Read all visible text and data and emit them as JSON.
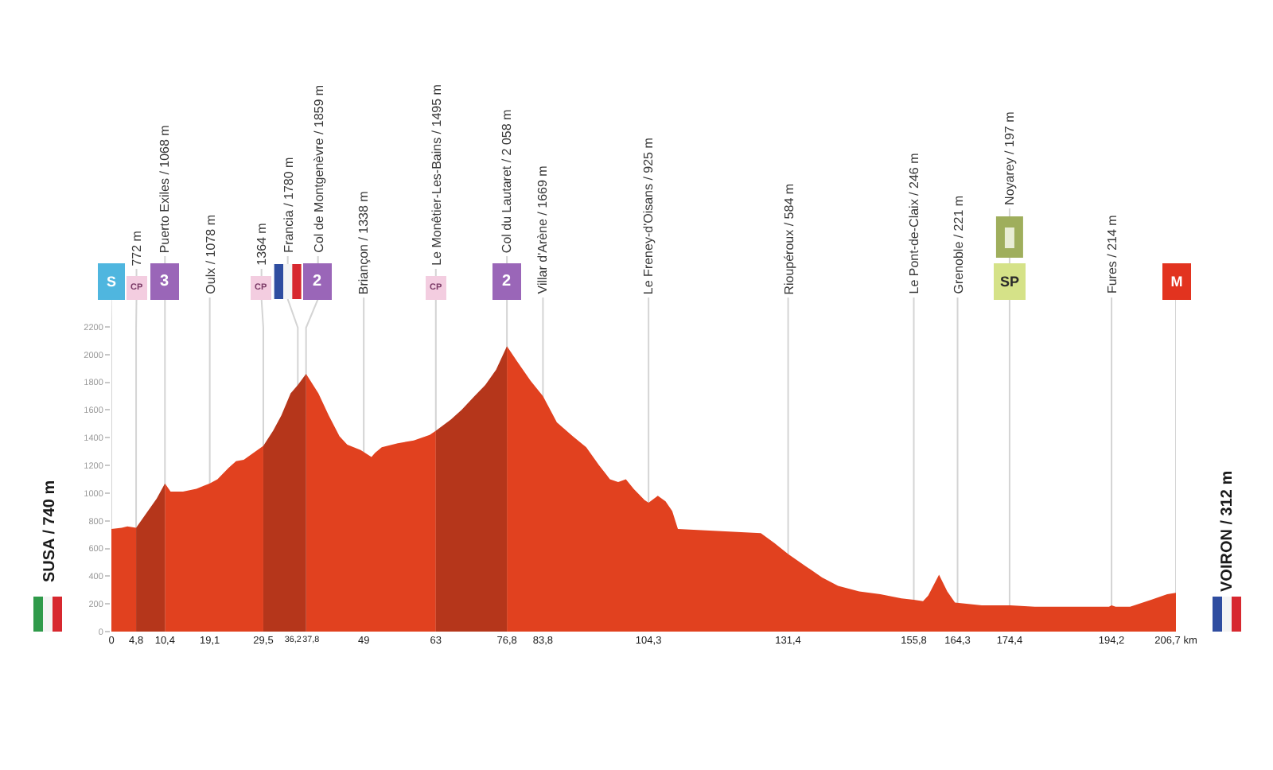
{
  "chart_data": {
    "type": "area",
    "x": [
      0,
      2,
      3.1,
      4.8,
      6.7,
      8.8,
      10.4,
      11.5,
      13.9,
      16.5,
      19.1,
      20.6,
      22.7,
      24.2,
      25.7,
      27.6,
      29.5,
      31.4,
      33.0,
      34.8,
      36.2,
      37.8,
      40.2,
      42.2,
      44.3,
      45.8,
      48.4,
      50.5,
      51.2,
      52.5,
      55.6,
      58.7,
      61.8,
      63,
      65.9,
      68.0,
      70.5,
      72.6,
      74.7,
      76.8,
      78.8,
      81.4,
      83.8,
      86.5,
      89.6,
      92.2,
      94.7,
      96.8,
      98.4,
      99.9,
      101.4,
      103.5,
      104.3,
      106.1,
      107.6,
      108.9,
      110.0,
      126.1,
      128.7,
      131.4,
      134.9,
      138.0,
      141.1,
      145.2,
      149.3,
      153.4,
      155.8,
      157.6,
      158.6,
      160.7,
      162.3,
      163.8,
      169.0,
      174.4,
      179.3,
      189.6,
      193.7,
      194.2,
      195.0,
      197.8,
      201.9,
      205.0,
      206.7
    ],
    "series": [
      {
        "color": "#e1411f",
        "values": [
          740,
          750,
          760,
          750,
          null,
          null,
          1070,
          1010,
          1010,
          1030,
          1070,
          1100,
          1180,
          1230,
          1240,
          1290,
          1340,
          null,
          null,
          null,
          null,
          1860,
          1720,
          1560,
          1410,
          1350,
          1310,
          1260,
          1290,
          1330,
          1360,
          1380,
          1420,
          1450,
          null,
          null,
          null,
          null,
          null,
          2060,
          1950,
          1810,
          1700,
          1510,
          1410,
          1330,
          1200,
          1100,
          1080,
          1100,
          1030,
          950,
          930,
          980,
          940,
          870,
          740,
          710,
          640,
          560,
          470,
          390,
          330,
          290,
          270,
          240,
          230,
          220,
          260,
          410,
          290,
          210,
          190,
          190,
          180,
          180,
          180,
          190,
          180,
          180,
          230,
          270,
          280
        ]
      },
      {
        "color": "#b5361b",
        "values": [
          null,
          null,
          null,
          750,
          850,
          960,
          1070,
          null,
          null,
          null,
          null,
          null,
          null,
          null,
          null,
          null,
          1340,
          1450,
          1560,
          1720,
          1780,
          1860,
          null,
          null,
          null,
          null,
          null,
          null,
          null,
          null,
          null,
          null,
          null,
          1450,
          1530,
          1600,
          1700,
          1780,
          1890,
          2060,
          null,
          null,
          null,
          null,
          null,
          null,
          null,
          null,
          null,
          null,
          null,
          null,
          null,
          null,
          null,
          null,
          null,
          null,
          null,
          null,
          null,
          null,
          null,
          null,
          null,
          null,
          null,
          null,
          null,
          null,
          null,
          null,
          null,
          null,
          null,
          null,
          null,
          null,
          null,
          null,
          null,
          null,
          null
        ]
      }
    ],
    "xlim": [
      0,
      206.7
    ],
    "xticks": [
      0,
      {
        "value": 4.8,
        "label": "4,8"
      },
      {
        "value": 10.4,
        "label": "10,4"
      },
      {
        "value": 19.1,
        "label": "19,1"
      },
      {
        "value": 29.5,
        "label": "29,5"
      },
      {
        "value": 36.2,
        "label": "36,2"
      },
      {
        "value": 37.8,
        "label": "37,8"
      },
      49,
      63,
      {
        "value": 76.8,
        "label": "76,8"
      },
      {
        "value": 83.8,
        "label": "83,8"
      },
      {
        "value": 104.3,
        "label": "104,3"
      },
      {
        "value": 131.4,
        "label": "131,4"
      },
      {
        "value": 155.8,
        "label": "155,8"
      },
      {
        "value": 164.3,
        "label": "164,3"
      },
      {
        "value": 174.4,
        "label": "174,4"
      },
      {
        "value": 194.2,
        "label": "194,2"
      },
      {
        "value": 206.7,
        "label": "206,7 km"
      }
    ],
    "ylim": [
      0,
      2400
    ],
    "yticks": [
      0,
      200,
      400,
      600,
      800,
      1000,
      1200,
      1400,
      1600,
      1800,
      2000,
      2200
    ],
    "ylabel": "SUSA / 740 m",
    "y2label": "VOIRON / 312 m",
    "ref_lines": [
      {
        "axis": "x",
        "value": 0,
        "label": null
      },
      {
        "axis": "x",
        "value": 4.8,
        "label": "772 m"
      },
      {
        "axis": "x",
        "value": 10.4,
        "label": "Puerto Exiles / 1068 m"
      },
      {
        "axis": "x",
        "value": 19.1,
        "label": "Oulx / 1078 m"
      },
      {
        "axis": "x",
        "value": 29.5,
        "label": "1364 m"
      },
      {
        "axis": "x",
        "value": 36.2,
        "label": "Francia / 1780 m"
      },
      {
        "axis": "x",
        "value": 37.8,
        "label": "Col de Montgenèvre / 1859 m"
      },
      {
        "axis": "x",
        "value": 49,
        "label": "Briançon / 1338 m"
      },
      {
        "axis": "x",
        "value": 63,
        "label": "Le Monêtier-Les-Bains / 1495 m"
      },
      {
        "axis": "x",
        "value": 76.8,
        "label": "Col du Lautaret / 2 058 m"
      },
      {
        "axis": "x",
        "value": 83.8,
        "label": "Villar d'Arène / 1669 m"
      },
      {
        "axis": "x",
        "value": 104.3,
        "label": "Le Freney-d'Oisans / 925 m"
      },
      {
        "axis": "x",
        "value": 131.4,
        "label": "Rioupéroux / 584 m"
      },
      {
        "axis": "x",
        "value": 155.8,
        "label": "Le Pont-de-Claix / 246 m"
      },
      {
        "axis": "x",
        "value": 164.3,
        "label": "Grenoble / 221 m"
      },
      {
        "axis": "x",
        "value": 174.4,
        "label": "Noyarey / 197 m"
      },
      {
        "axis": "x",
        "value": 194.2,
        "label": "Fures / 214 m"
      },
      {
        "axis": "x",
        "value": 206.7,
        "label": null
      }
    ],
    "annotations": [
      "S",
      "CP",
      "3",
      "CP",
      "2",
      "CP",
      "2",
      "SP",
      "M"
    ]
  }
}
